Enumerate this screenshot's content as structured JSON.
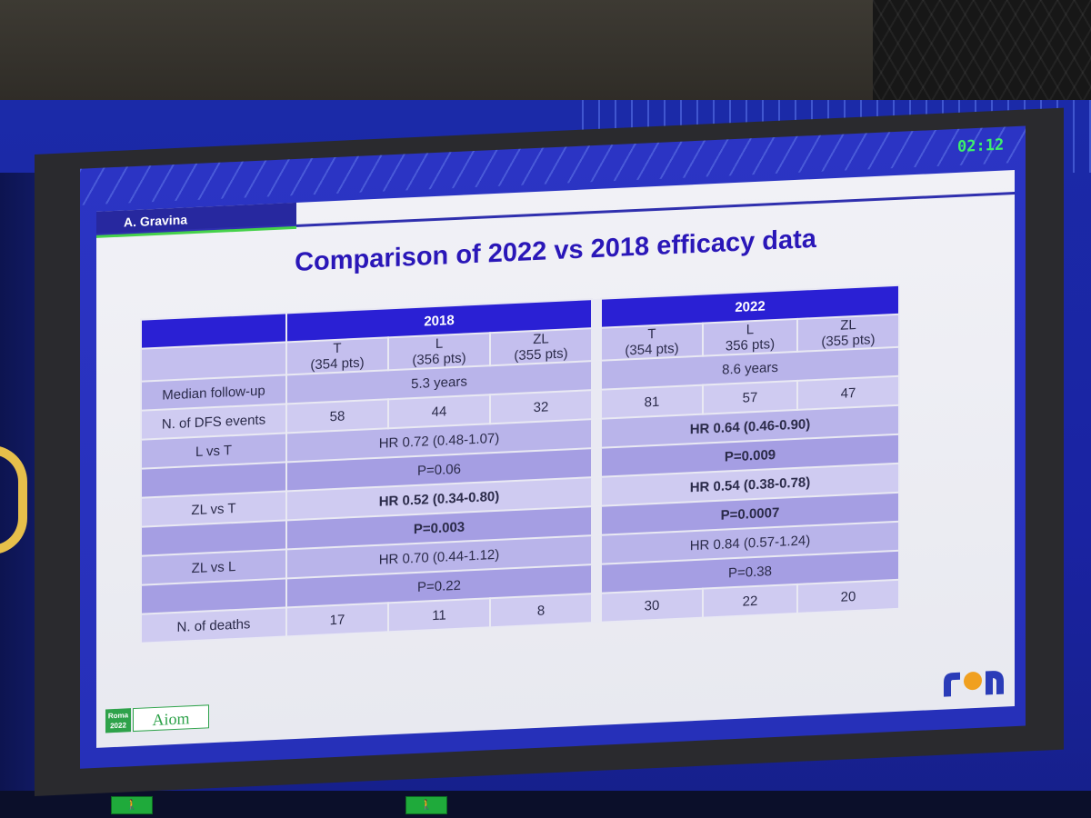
{
  "slide": {
    "timer": "02:12",
    "speaker": "A. Gravina",
    "title": "Comparison of 2022 vs 2018 efficacy data"
  },
  "table": {
    "years": [
      "2018",
      "2022"
    ],
    "arms_2018": [
      {
        "name": "T",
        "pts": "(354 pts)"
      },
      {
        "name": "L",
        "pts": "(356 pts)"
      },
      {
        "name": "ZL",
        "pts": "(355 pts)"
      }
    ],
    "arms_2022": [
      {
        "name": "T",
        "pts": "(354 pts)"
      },
      {
        "name": "L",
        "pts": "356 pts)"
      },
      {
        "name": "ZL",
        "pts": "(355 pts)"
      }
    ],
    "followup": {
      "label": "Median follow-up",
      "v2018": "5.3 years",
      "v2022": "8.6 years"
    },
    "dfs": {
      "label": "N. of DFS events",
      "v2018": [
        "58",
        "44",
        "32"
      ],
      "v2022": [
        "81",
        "57",
        "47"
      ]
    },
    "l_vs_t": {
      "label": "L vs T",
      "hr2018": "HR 0.72 (0.48-1.07)",
      "p2018": "P=0.06",
      "hr2022": "HR 0.64 (0.46-0.90)",
      "p2022": "P=0.009"
    },
    "zl_vs_t": {
      "label": "ZL vs T",
      "hr2018": "HR 0.52 (0.34-0.80)",
      "p2018": "P=0.003",
      "hr2022": "HR 0.54 (0.38-0.78)",
      "p2022": "P=0.0007"
    },
    "zl_vs_l": {
      "label": "ZL vs L",
      "hr2018": "HR 0.70 (0.44-1.12)",
      "p2018": "P=0.22",
      "hr2022": "HR 0.84 (0.57-1.24)",
      "p2022": "P=0.38"
    },
    "deaths": {
      "label": "N. of deaths",
      "v2018": [
        "17",
        "11",
        "8"
      ],
      "v2022": [
        "30",
        "22",
        "20"
      ]
    }
  },
  "footer": {
    "roma_line1": "Roma",
    "roma_line2": "2022",
    "aiom": "Aiom"
  },
  "colors": {
    "header_blue": "#2a20d4",
    "title_blue": "#2a17b8",
    "timer_green": "#3df06a",
    "logo_orange": "#f0a020"
  }
}
